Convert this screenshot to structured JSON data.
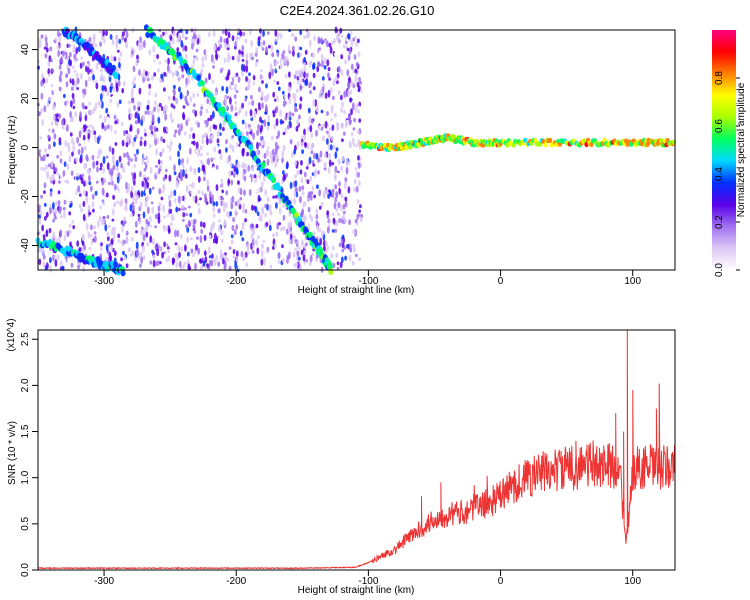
{
  "title": "C2E4.2024.361.02.26.G10",
  "chart_data": [
    {
      "type": "heatmap",
      "xlabel": "Height of straight line (km)",
      "ylabel": "Frequency (Hz)",
      "xlim": [
        -350,
        132
      ],
      "ylim": [
        -50,
        48
      ],
      "xticks": [
        -300,
        -200,
        -100,
        0,
        100
      ],
      "yticks": [
        -40,
        -20,
        0,
        20,
        40
      ],
      "colorbar": {
        "label": "Normalized spectral amplitude",
        "range": [
          0,
          1
        ],
        "ticks": [
          "0.0",
          "0.2",
          "0.4",
          "0.6",
          "0.8"
        ],
        "colors": [
          "#ffffff",
          "#dcc8f5",
          "#a070f0",
          "#5a00e8",
          "#0030ff",
          "#00d8ff",
          "#00ff60",
          "#a8ff00",
          "#ffff00",
          "#ff8000",
          "#ff0000",
          "#ff0080"
        ]
      },
      "noise_region": [
        -350,
        -105
      ],
      "features": [
        {
          "label": "diagonal ridge 1",
          "points": [
            [
              -268,
              48
            ],
            [
              -240,
              35
            ],
            [
              -215,
              18
            ],
            [
              -190,
              0
            ],
            [
              -165,
              -20
            ],
            [
              -140,
              -40
            ],
            [
              -128,
              -50
            ]
          ],
          "amplitude": 0.55
        },
        {
          "label": "diagonal ridge 2",
          "points": [
            [
              -350,
              -38
            ],
            [
              -320,
              -44
            ],
            [
              -300,
              -48
            ],
            [
              -285,
              -50
            ]
          ],
          "amplitude": 0.5
        },
        {
          "label": "diagonal ridge 3",
          "points": [
            [
              -330,
              48
            ],
            [
              -315,
              42
            ],
            [
              -290,
              30
            ]
          ],
          "amplitude": 0.45
        },
        {
          "label": "carrier line",
          "points": [
            [
              -105,
              1
            ],
            [
              -80,
              0
            ],
            [
              -60,
              2
            ],
            [
              -40,
              4
            ],
            [
              -20,
              2
            ],
            [
              0,
              2
            ],
            [
              50,
              2
            ],
            [
              100,
              2
            ],
            [
              132,
              2
            ]
          ],
          "amplitude": 0.8
        }
      ]
    },
    {
      "type": "line",
      "xlabel": "Height of straight line (km)",
      "ylabel": "SNR (10 * v/v)",
      "multiplier": "(x10^4)",
      "xlim": [
        -350,
        132
      ],
      "ylim": [
        0,
        2.6
      ],
      "xticks": [
        -300,
        -200,
        -100,
        0,
        100
      ],
      "yticks": [
        "0.0",
        "0.5",
        "1.0",
        "1.5",
        "2.0",
        "2.5"
      ],
      "color": "#ee3333",
      "series": [
        {
          "x": [
            -350,
            -300,
            -250,
            -200,
            -150,
            -110,
            -100,
            -90,
            -80,
            -70,
            -60,
            -50,
            -40,
            -30,
            -20,
            -10,
            0,
            10,
            20,
            30,
            40,
            50,
            60,
            70,
            80,
            90,
            95,
            100,
            110,
            120,
            132
          ],
          "values": [
            0.02,
            0.02,
            0.02,
            0.02,
            0.02,
            0.03,
            0.08,
            0.15,
            0.22,
            0.35,
            0.45,
            0.55,
            0.6,
            0.62,
            0.68,
            0.72,
            0.8,
            0.92,
            1.0,
            1.05,
            1.08,
            1.1,
            1.12,
            1.15,
            1.13,
            1.12,
            0.25,
            1.1,
            1.12,
            1.1,
            1.12
          ]
        }
      ],
      "spikes": [
        [
          -60,
          0.8
        ],
        [
          -45,
          0.95
        ],
        [
          -20,
          0.92
        ],
        [
          -10,
          1.02
        ],
        [
          57,
          1.4
        ],
        [
          78,
          1.35
        ],
        [
          87,
          1.7
        ],
        [
          93,
          1.5
        ],
        [
          96,
          2.6
        ],
        [
          100,
          1.95
        ],
        [
          118,
          1.75
        ],
        [
          120,
          2.02
        ]
      ]
    }
  ]
}
